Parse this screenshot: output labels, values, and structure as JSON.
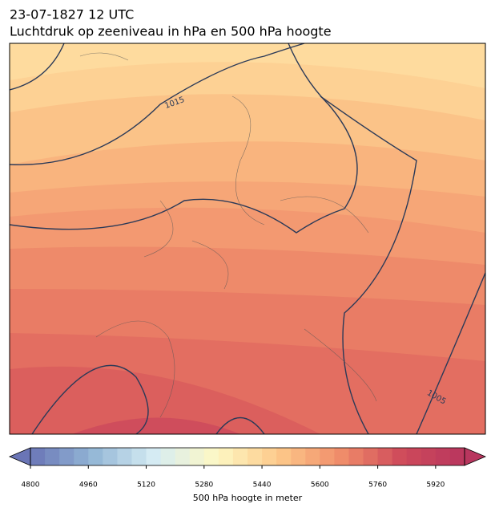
{
  "header": {
    "title": "23-07-1827 12 UTC",
    "subtitle": "Luchtdruk op zeeniveau in hPa en 500 hPa hoogte"
  },
  "map": {
    "isobar_labels": [
      "1015",
      "1005"
    ]
  },
  "colorbar": {
    "label": "500 hPa hoogte in meter",
    "lim": [
      4800,
      6000
    ],
    "step": 40,
    "ticks": [
      4800,
      4960,
      5120,
      5280,
      5440,
      5600,
      5760,
      5920
    ],
    "colormap": [
      "#6a75b6",
      "#93b6d6",
      "#d6ecf3",
      "#fdf8c4",
      "#fdc98a",
      "#f08d6a",
      "#ce4a5a",
      "#b8365e"
    ]
  }
}
